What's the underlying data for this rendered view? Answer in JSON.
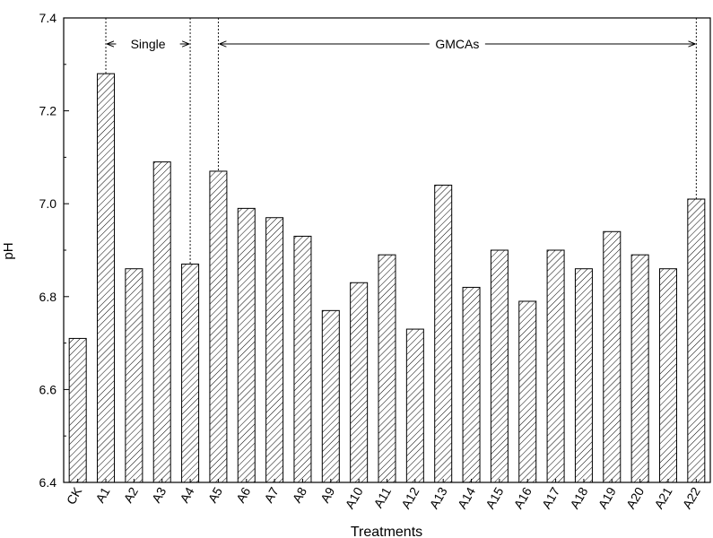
{
  "chart_data": {
    "type": "bar",
    "ylabel": "pH",
    "xlabel": "Treatments",
    "ylim": [
      6.4,
      7.4
    ],
    "yticks": [
      "6.4",
      "6.6",
      "6.8",
      "7.0",
      "7.2",
      "7.4"
    ],
    "grid": false,
    "bar_pattern": "diagonal-hatch",
    "categories": [
      "CK",
      "A1",
      "A2",
      "A3",
      "A4",
      "A5",
      "A6",
      "A7",
      "A8",
      "A9",
      "A10",
      "A11",
      "A12",
      "A13",
      "A14",
      "A15",
      "A16",
      "A17",
      "A18",
      "A19",
      "A20",
      "A21",
      "A22"
    ],
    "values": [
      6.71,
      7.28,
      6.86,
      7.09,
      6.87,
      7.07,
      6.99,
      6.97,
      6.93,
      6.77,
      6.83,
      6.89,
      6.73,
      7.04,
      6.82,
      6.9,
      6.79,
      6.9,
      6.86,
      6.94,
      6.89,
      6.86,
      7.01
    ],
    "annotations": [
      {
        "text": "Single",
        "from": "A1",
        "to": "A4"
      },
      {
        "text": "GMCAs",
        "from": "A5",
        "to": "A22"
      }
    ]
  }
}
